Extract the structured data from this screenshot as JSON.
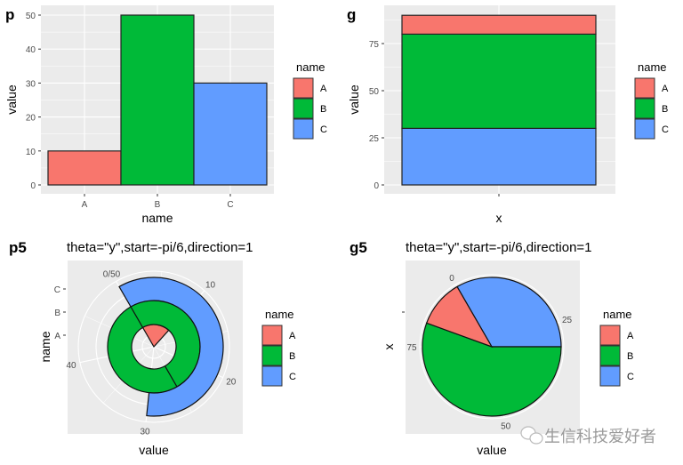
{
  "colors": {
    "A": "#F8766D",
    "B": "#00BA38",
    "C": "#619CFF",
    "panel": "#EBEBEB",
    "grid": "#FFFFFF"
  },
  "watermark": {
    "icon": "wechat-icon",
    "text": "生信科技爱好者"
  },
  "chart_data": [
    {
      "tag": "p",
      "type": "bar",
      "categories": [
        "A",
        "B",
        "C"
      ],
      "values": [
        10,
        50,
        30
      ],
      "xlabel": "name",
      "ylabel": "value",
      "yticks": [
        "0",
        "10",
        "20",
        "30",
        "40",
        "50"
      ],
      "ylim": [
        0,
        50
      ],
      "grid": true,
      "legend": {
        "title": "name",
        "items": [
          "A",
          "B",
          "C"
        ],
        "position": "right"
      }
    },
    {
      "tag": "g",
      "type": "bar",
      "stacked": true,
      "categories": [
        ""
      ],
      "series": [
        {
          "name": "A",
          "values": [
            10
          ]
        },
        {
          "name": "B",
          "values": [
            50
          ]
        },
        {
          "name": "C",
          "values": [
            30
          ]
        }
      ],
      "xlabel": "x",
      "ylabel": "value",
      "yticks": [
        "0",
        "25",
        "50",
        "75"
      ],
      "ylim": [
        0,
        90
      ],
      "grid": true,
      "legend": {
        "title": "name",
        "items": [
          "A",
          "B",
          "C"
        ],
        "position": "right"
      }
    },
    {
      "tag": "p5",
      "type": "bar",
      "coord": "polar",
      "title": "theta=\"y\",start=-pi/6,direction=1",
      "categories": [
        "A",
        "B",
        "C"
      ],
      "values": [
        10,
        50,
        30
      ],
      "theta_ticks": [
        "0/50",
        "10",
        "20",
        "30",
        "40"
      ],
      "theta_range": [
        0,
        50
      ],
      "xlabel": "value",
      "ylabel": "name",
      "legend": {
        "title": "name",
        "items": [
          "A",
          "B",
          "C"
        ],
        "position": "right"
      }
    },
    {
      "tag": "g5",
      "type": "pie",
      "title": "theta=\"y\",start=-pi/6,direction=1",
      "categories": [
        "A",
        "B",
        "C"
      ],
      "values": [
        10,
        50,
        30
      ],
      "theta_ticks": [
        "0",
        "25",
        "50",
        "75"
      ],
      "theta_range": [
        0,
        90
      ],
      "xlabel": "value",
      "ylabel": "x",
      "legend": {
        "title": "name",
        "items": [
          "A",
          "B",
          "C"
        ],
        "position": "right"
      }
    }
  ]
}
